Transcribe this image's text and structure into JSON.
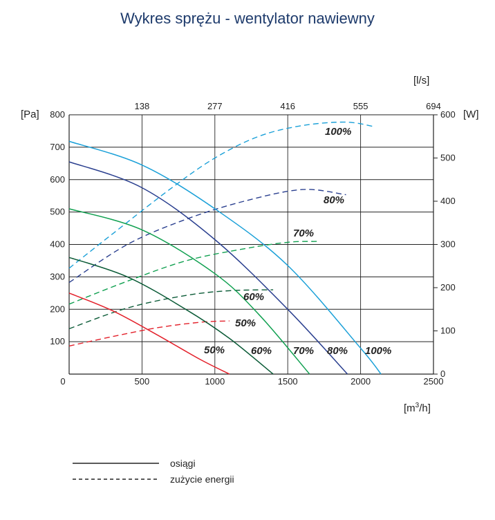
{
  "chart_data": {
    "type": "line",
    "title": "Wykres sprężu - wentylator nawiewny",
    "x_bottom": {
      "unit": "[m³/h]",
      "unit_base": "[m",
      "unit_sup": "3",
      "unit_end": "/h]",
      "range": [
        0,
        2500
      ],
      "ticks": [
        "0",
        "500",
        "1000",
        "1500",
        "2000",
        "2500"
      ]
    },
    "x_top": {
      "unit": "[l/s]",
      "ticks": [
        "138",
        "277",
        "416",
        "555",
        "694"
      ]
    },
    "y_left": {
      "unit": "[Pa]",
      "range": [
        0,
        800
      ],
      "ticks": [
        "100",
        "200",
        "300",
        "400",
        "500",
        "600",
        "700",
        "800"
      ]
    },
    "y_right": {
      "unit": "[W]",
      "range": [
        0,
        600
      ],
      "ticks": [
        "0",
        "100",
        "200",
        "300",
        "400",
        "500",
        "600"
      ]
    },
    "grid": true,
    "colors": {
      "50": "#e3202a",
      "60": "#0a5a36",
      "70": "#10a050",
      "80": "#2a3f8f",
      "100": "#1aa0d8"
    },
    "pressure_series": [
      {
        "name": "50%",
        "color_key": "50",
        "x": [
          0,
          300,
          600,
          900,
          1100
        ],
        "y": [
          250,
          195,
          122,
          45,
          0
        ]
      },
      {
        "name": "60%",
        "color_key": "60",
        "x": [
          0,
          400,
          800,
          1100,
          1400
        ],
        "y": [
          360,
          300,
          200,
          110,
          0
        ]
      },
      {
        "name": "70%",
        "color_key": "70",
        "x": [
          0,
          500,
          1000,
          1300,
          1650
        ],
        "y": [
          510,
          445,
          310,
          185,
          0
        ]
      },
      {
        "name": "80%",
        "color_key": "80",
        "x": [
          0,
          500,
          1000,
          1500,
          1910
        ],
        "y": [
          655,
          575,
          415,
          200,
          0
        ]
      },
      {
        "name": "100%",
        "color_key": "100",
        "x": [
          0,
          500,
          1000,
          1500,
          2000,
          2140
        ],
        "y": [
          718,
          645,
          510,
          335,
          80,
          0
        ]
      }
    ],
    "power_series": [
      {
        "name": "50%",
        "color_key": "50",
        "x": [
          0,
          300,
          600,
          900,
          1100
        ],
        "y": [
          65,
          87,
          107,
          120,
          123
        ]
      },
      {
        "name": "60%",
        "color_key": "60",
        "x": [
          0,
          400,
          800,
          1100,
          1400
        ],
        "y": [
          105,
          153,
          182,
          193,
          195
        ]
      },
      {
        "name": "70%",
        "color_key": "70",
        "x": [
          0,
          400,
          800,
          1200,
          1500,
          1700
        ],
        "y": [
          162,
          215,
          262,
          290,
          305,
          307
        ]
      },
      {
        "name": "80%",
        "color_key": "80",
        "x": [
          0,
          400,
          800,
          1200,
          1600,
          1900
        ],
        "y": [
          212,
          300,
          358,
          400,
          427,
          415
        ]
      },
      {
        "name": "100%",
        "color_key": "100",
        "x": [
          0,
          300,
          700,
          1000,
          1300,
          1600,
          1900,
          2100
        ],
        "y": [
          245,
          325,
          430,
          500,
          550,
          575,
          583,
          572
        ]
      }
    ],
    "pressure_labels": [
      "50%",
      "60%",
      "70%",
      "80%",
      "100%"
    ],
    "power_labels": [
      "50%",
      "60%",
      "70%",
      "80%",
      "100%"
    ]
  },
  "legend": {
    "solid_label": "osiągi",
    "dashed_label": "zużycie energii"
  }
}
